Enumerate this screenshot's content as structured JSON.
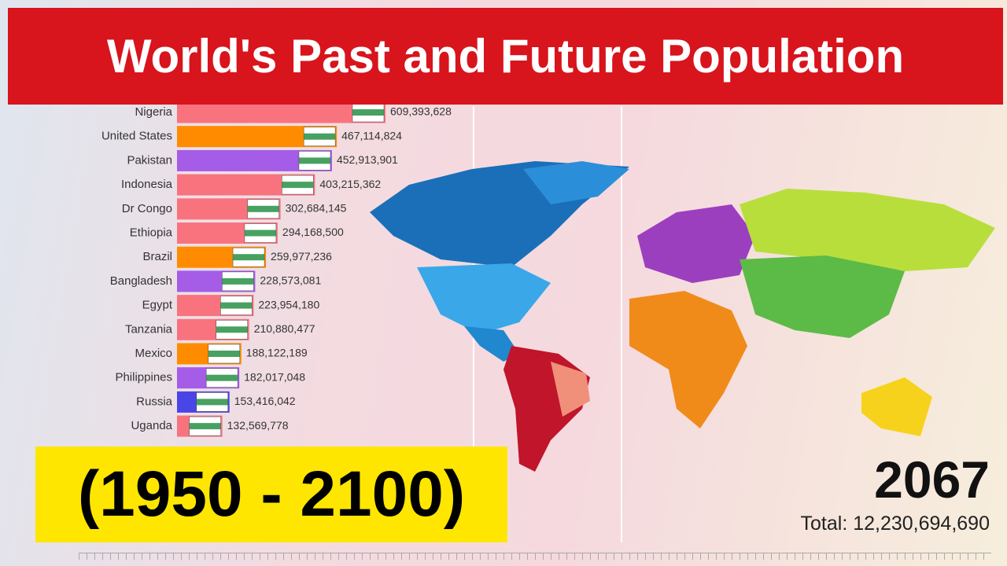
{
  "chart_data": {
    "type": "bar",
    "title": "World's Past and Future Population",
    "subtitle": "(1950 - 2100)",
    "year": "2067",
    "total": "Total: 12,230,694,690",
    "categories": [
      "Nigeria",
      "United States",
      "Pakistan",
      "Indonesia",
      "Dr Congo",
      "Ethiopia",
      "Brazil",
      "Bangladesh",
      "Egypt",
      "Tanzania",
      "Mexico",
      "Philippines",
      "Russia",
      "Uganda"
    ],
    "values": [
      609393628,
      467114824,
      452913901,
      403215362,
      302684145,
      294168500,
      259977236,
      228573081,
      223954180,
      210880477,
      188122189,
      182017048,
      153416042,
      132569778
    ],
    "value_labels": [
      "609,393,628",
      "467,114,824",
      "452,913,901",
      "403,215,362",
      "302,684,145",
      "294,168,500",
      "259,977,236",
      "228,573,081",
      "223,954,180",
      "210,880,477",
      "188,122,189",
      "182,017,048",
      "153,416,042",
      "132,569,778"
    ],
    "colors": [
      "#f9737f",
      "#ff8c00",
      "#a55ce6",
      "#f9737f",
      "#f9737f",
      "#f9737f",
      "#ff8c00",
      "#a55ce6",
      "#f9737f",
      "#f9737f",
      "#ff8c00",
      "#a55ce6",
      "#4a45e6",
      "#f9737f"
    ]
  }
}
